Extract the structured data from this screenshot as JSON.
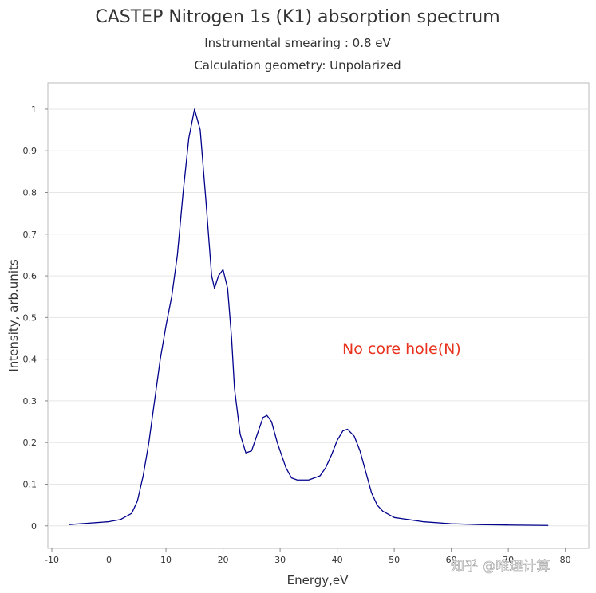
{
  "chart_data": {
    "type": "line",
    "title": "CASTEP Nitrogen 1s (K1) absorption spectrum",
    "subtitles": [
      "Instrumental smearing : 0.8 eV",
      "Calculation geometry: Unpolarized"
    ],
    "x_label": "Energy,eV",
    "y_label": "Intensity, arb.units",
    "annotation": "No core hole(N)",
    "watermark": "知乎 @唯理计算",
    "grid": true,
    "xlim": [
      -10.7,
      84.1
    ],
    "ylim": [
      -0.054,
      1.063
    ],
    "xticks": [
      -10,
      0,
      10,
      20,
      30,
      40,
      50,
      60,
      70,
      80
    ],
    "yticks": [
      0,
      0.1,
      0.2,
      0.3,
      0.4,
      0.5,
      0.6,
      0.7,
      0.8,
      0.9,
      1
    ],
    "series": [
      {
        "color": "#00008b",
        "x": [
          -7,
          -4,
          0,
          2,
          4,
          5,
          6,
          7,
          8,
          9,
          10,
          11,
          12,
          13,
          14,
          15,
          16,
          17,
          18,
          18.5,
          19.2,
          20,
          20.8,
          21.5,
          22,
          23,
          24,
          25,
          26,
          27,
          27.7,
          28.5,
          29.5,
          31,
          32,
          33,
          35,
          37,
          38,
          39,
          40,
          41,
          41.8,
          43,
          44,
          45,
          46,
          47,
          48,
          50,
          55,
          60,
          65,
          70,
          77
        ],
        "values": [
          0.003,
          0.006,
          0.01,
          0.015,
          0.03,
          0.06,
          0.12,
          0.2,
          0.3,
          0.4,
          0.48,
          0.55,
          0.65,
          0.8,
          0.93,
          1.0,
          0.95,
          0.78,
          0.6,
          0.57,
          0.6,
          0.615,
          0.57,
          0.45,
          0.33,
          0.22,
          0.175,
          0.18,
          0.22,
          0.26,
          0.265,
          0.25,
          0.2,
          0.14,
          0.115,
          0.11,
          0.11,
          0.12,
          0.14,
          0.17,
          0.205,
          0.228,
          0.232,
          0.215,
          0.18,
          0.13,
          0.08,
          0.05,
          0.035,
          0.02,
          0.01,
          0.005,
          0.003,
          0.002,
          0.001
        ]
      }
    ]
  }
}
